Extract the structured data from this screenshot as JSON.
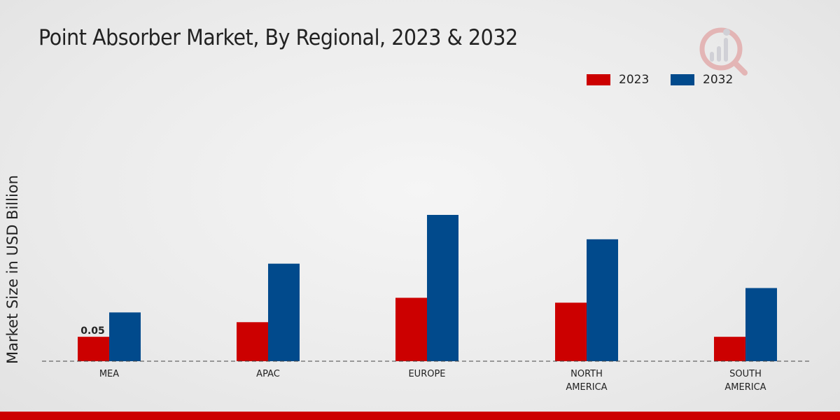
{
  "chart_data": {
    "type": "bar",
    "title": "Point Absorber Market, By Regional, 2023 & 2032",
    "xlabel": "",
    "ylabel": "Market Size in USD Billion",
    "categories": [
      [
        "MEA"
      ],
      [
        "APAC"
      ],
      [
        "EUROPE"
      ],
      [
        "NORTH",
        "AMERICA"
      ],
      [
        "SOUTH",
        "AMERICA"
      ]
    ],
    "series": [
      {
        "name": "2023",
        "color": "#cc0000",
        "values": [
          0.05,
          0.08,
          0.13,
          0.12,
          0.05
        ]
      },
      {
        "name": "2032",
        "color": "#014a8c",
        "values": [
          0.1,
          0.2,
          0.3,
          0.25,
          0.15
        ]
      }
    ],
    "data_labels": [
      {
        "series": 0,
        "category": 0,
        "text": "0.05"
      }
    ],
    "ylim": [
      0,
      0.38
    ],
    "grid": false,
    "legend_position": "top-right"
  }
}
